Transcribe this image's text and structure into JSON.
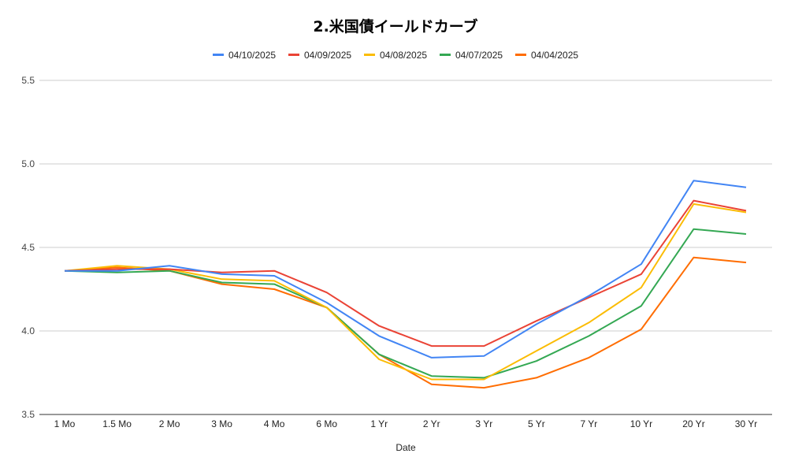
{
  "chart_data": {
    "type": "line",
    "title": "2.米国債イールドカーブ",
    "xlabel": "Date",
    "ylabel": "",
    "ylim": [
      3.5,
      5.5
    ],
    "yticks": [
      "3.5",
      "4.0",
      "4.5",
      "5.0",
      "5.5"
    ],
    "grid": true,
    "legend_position": "top",
    "categories": [
      "1 Mo",
      "1.5 Mo",
      "2 Mo",
      "3 Mo",
      "4 Mo",
      "6 Mo",
      "1 Yr",
      "2 Yr",
      "3 Yr",
      "5 Yr",
      "7 Yr",
      "10 Yr",
      "20 Yr",
      "30 Yr"
    ],
    "series": [
      {
        "name": "04/10/2025",
        "color": "#4285F4",
        "values": [
          4.36,
          4.36,
          4.39,
          4.34,
          4.33,
          4.17,
          3.97,
          3.84,
          3.85,
          4.04,
          4.21,
          4.4,
          4.9,
          4.86
        ]
      },
      {
        "name": "04/09/2025",
        "color": "#EA4335",
        "values": [
          4.36,
          4.37,
          4.37,
          4.35,
          4.36,
          4.23,
          4.03,
          3.91,
          3.91,
          4.06,
          4.2,
          4.34,
          4.78,
          4.72
        ]
      },
      {
        "name": "04/08/2025",
        "color": "#FBBC04",
        "values": [
          4.36,
          4.39,
          4.37,
          4.31,
          4.3,
          4.14,
          3.83,
          3.71,
          3.71,
          3.88,
          4.05,
          4.26,
          4.76,
          4.71
        ]
      },
      {
        "name": "04/07/2025",
        "color": "#34A853",
        "values": [
          4.36,
          4.35,
          4.36,
          4.29,
          4.28,
          4.14,
          3.86,
          3.73,
          3.72,
          3.82,
          3.97,
          4.15,
          4.61,
          4.58
        ]
      },
      {
        "name": "04/04/2025",
        "color": "#FF6D01",
        "values": [
          4.36,
          4.38,
          4.36,
          4.28,
          4.25,
          4.14,
          3.86,
          3.68,
          3.66,
          3.72,
          3.84,
          4.01,
          4.44,
          4.41
        ]
      }
    ]
  }
}
